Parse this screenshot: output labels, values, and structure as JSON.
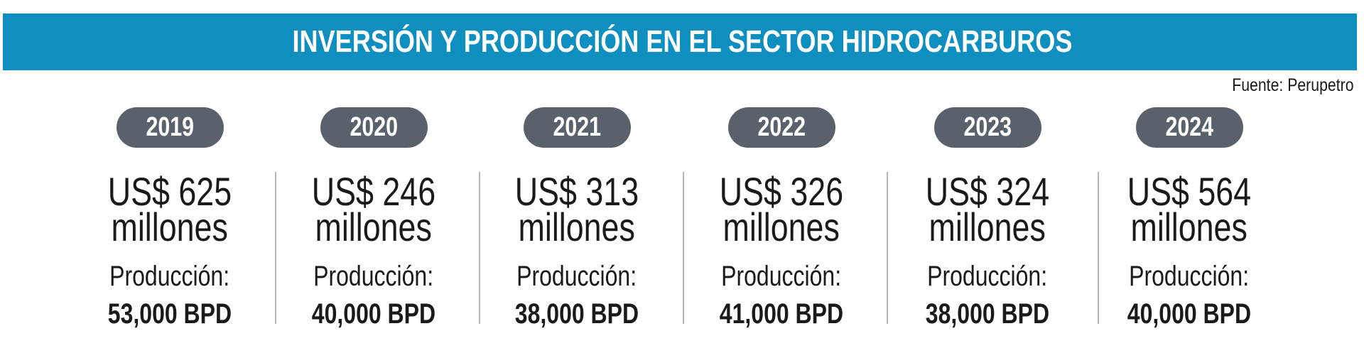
{
  "header": {
    "title": "INVERSIÓN Y PRODUCCIÓN EN EL SECTOR HIDROCARBUROS",
    "source": "Fuente: Perupetro"
  },
  "columns": [
    {
      "year": "2019",
      "investment": "US$ 625",
      "unit": "millones",
      "production_label": "Producción:",
      "production": "53,000 BPD"
    },
    {
      "year": "2020",
      "investment": "US$ 246",
      "unit": "millones",
      "production_label": "Producción:",
      "production": "40,000 BPD"
    },
    {
      "year": "2021",
      "investment": "US$ 313",
      "unit": "millones",
      "production_label": "Producción:",
      "production": "38,000 BPD"
    },
    {
      "year": "2022",
      "investment": "US$ 326",
      "unit": "millones",
      "production_label": "Producción:",
      "production": "41,000 BPD"
    },
    {
      "year": "2023",
      "investment": "US$ 324",
      "unit": "millones",
      "production_label": "Producción:",
      "production": "38,000 BPD"
    },
    {
      "year": "2024",
      "investment": "US$ 564",
      "unit": "millones",
      "production_label": "Producción:",
      "production": "40,000 BPD"
    }
  ]
}
